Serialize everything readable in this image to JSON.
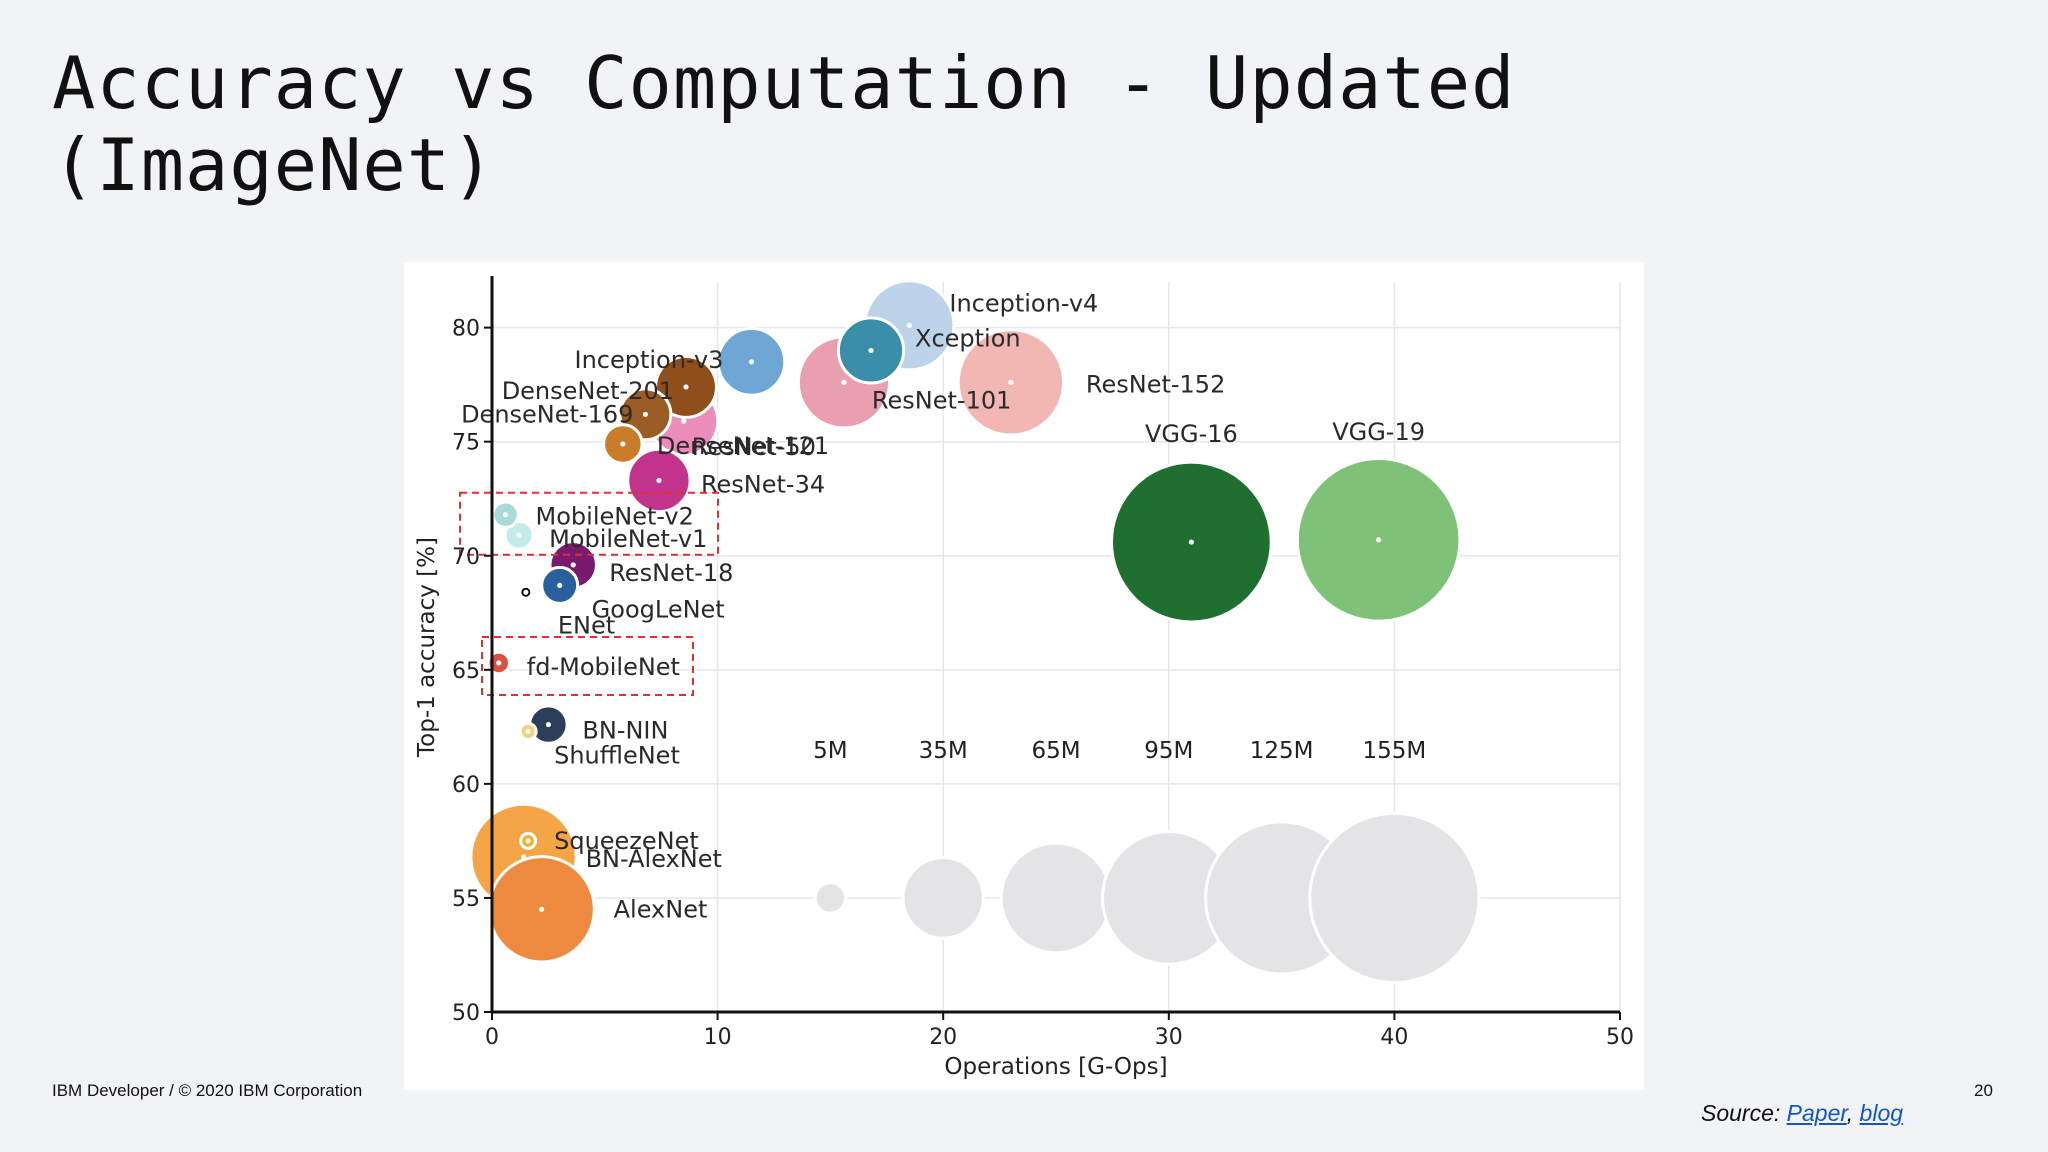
{
  "slide": {
    "title": "Accuracy vs Computation - Updated (ImageNet)",
    "footer": "IBM Developer / © 2020 IBM Corporation",
    "page_number": "20",
    "source_prefix": "Source: ",
    "source_link1": "Paper",
    "source_sep": ", ",
    "source_link2": "blog"
  },
  "chart_data": {
    "type": "scatter",
    "title": "",
    "xlabel": "Operations [G-Ops]",
    "ylabel": "Top-1 accuracy [%]",
    "xlim": [
      0,
      50
    ],
    "ylim": [
      50,
      82
    ],
    "xticks": [
      0,
      10,
      20,
      30,
      40,
      50
    ],
    "yticks": [
      50,
      55,
      60,
      65,
      70,
      75,
      80
    ],
    "grid": true,
    "size_encoding": "parameters",
    "points": [
      {
        "name": "Inception-v4",
        "x": 18.5,
        "y": 80.1,
        "params": 43,
        "color": "#bdd3ea"
      },
      {
        "name": "ResNet-152",
        "x": 23.0,
        "y": 77.6,
        "params": 60,
        "color": "#f2b6b3"
      },
      {
        "name": "ResNet-101",
        "x": 15.6,
        "y": 77.6,
        "params": 45,
        "color": "#ea9fb1"
      },
      {
        "name": "Xception",
        "x": 16.8,
        "y": 79.0,
        "params": 23,
        "color": "#3a8ea8"
      },
      {
        "name": "Inception-v3",
        "x": 11.5,
        "y": 78.5,
        "params": 24,
        "color": "#6ea6d6"
      },
      {
        "name": "DenseNet-201",
        "x": 8.6,
        "y": 77.4,
        "params": 20,
        "color": "#8f4f1c"
      },
      {
        "name": "DenseNet-169",
        "x": 6.8,
        "y": 76.2,
        "params": 14,
        "color": "#9a5c24"
      },
      {
        "name": "ResNet-50",
        "x": 8.5,
        "y": 75.9,
        "params": 25,
        "color": "#ec8cba"
      },
      {
        "name": "DenseNet-121",
        "x": 5.8,
        "y": 74.9,
        "params": 8,
        "color": "#c97c2a"
      },
      {
        "name": "ResNet-34",
        "x": 7.4,
        "y": 73.3,
        "params": 21,
        "color": "#c2338d"
      },
      {
        "name": "VGG-16",
        "x": 31.0,
        "y": 70.6,
        "params": 138,
        "color": "#1e6f30"
      },
      {
        "name": "VGG-19",
        "x": 39.3,
        "y": 70.7,
        "params": 143,
        "color": "#7ec277"
      },
      {
        "name": "MobileNet-v2",
        "x": 0.6,
        "y": 71.8,
        "params": 3.5,
        "color": "#a9dbd9"
      },
      {
        "name": "MobileNet-v1",
        "x": 1.2,
        "y": 70.9,
        "params": 4.2,
        "color": "#c2ece9"
      },
      {
        "name": "ResNet-18",
        "x": 3.6,
        "y": 69.6,
        "params": 11.7,
        "color": "#7a1a6e"
      },
      {
        "name": "GoogLeNet",
        "x": 3.0,
        "y": 68.7,
        "params": 7,
        "color": "#2a5fa0"
      },
      {
        "name": "ENet",
        "x": 1.5,
        "y": 68.4,
        "params": 0.4,
        "color": "#000000"
      },
      {
        "name": "fd-MobileNet",
        "x": 0.3,
        "y": 65.3,
        "params": 2.5,
        "color": "#d9503e"
      },
      {
        "name": "BN-NIN",
        "x": 2.5,
        "y": 62.6,
        "params": 7.6,
        "color": "#2c3e5c"
      },
      {
        "name": "ShuffleNet",
        "x": 1.6,
        "y": 62.3,
        "params": 1.4,
        "color": "#f2d27a"
      },
      {
        "name": "SqueezeNet",
        "x": 1.6,
        "y": 57.5,
        "params": 1.2,
        "color": "#f2b233"
      },
      {
        "name": "BN-AlexNet",
        "x": 1.4,
        "y": 56.8,
        "params": 60,
        "color": "#f5a545"
      },
      {
        "name": "AlexNet",
        "x": 2.2,
        "y": 54.5,
        "params": 60,
        "color": "#ed8a3f"
      }
    ],
    "size_legend": [
      {
        "label": "5M",
        "params": 5,
        "x": 15,
        "y": 55
      },
      {
        "label": "35M",
        "params": 35,
        "x": 20,
        "y": 55
      },
      {
        "label": "65M",
        "params": 65,
        "x": 25,
        "y": 55
      },
      {
        "label": "95M",
        "params": 95,
        "x": 30,
        "y": 55
      },
      {
        "label": "125M",
        "params": 125,
        "x": 35,
        "y": 55
      },
      {
        "label": "155M",
        "params": 155,
        "x": 40,
        "y": 55
      }
    ],
    "highlight_boxes": [
      {
        "label": "MobileNet box",
        "members": [
          "MobileNet-v2",
          "MobileNet-v1"
        ],
        "color": "#e03030"
      },
      {
        "label": "fd-MobileNet box",
        "members": [
          "fd-MobileNet"
        ],
        "color": "#e03030"
      }
    ],
    "legend_color": "#e4e3e6"
  }
}
